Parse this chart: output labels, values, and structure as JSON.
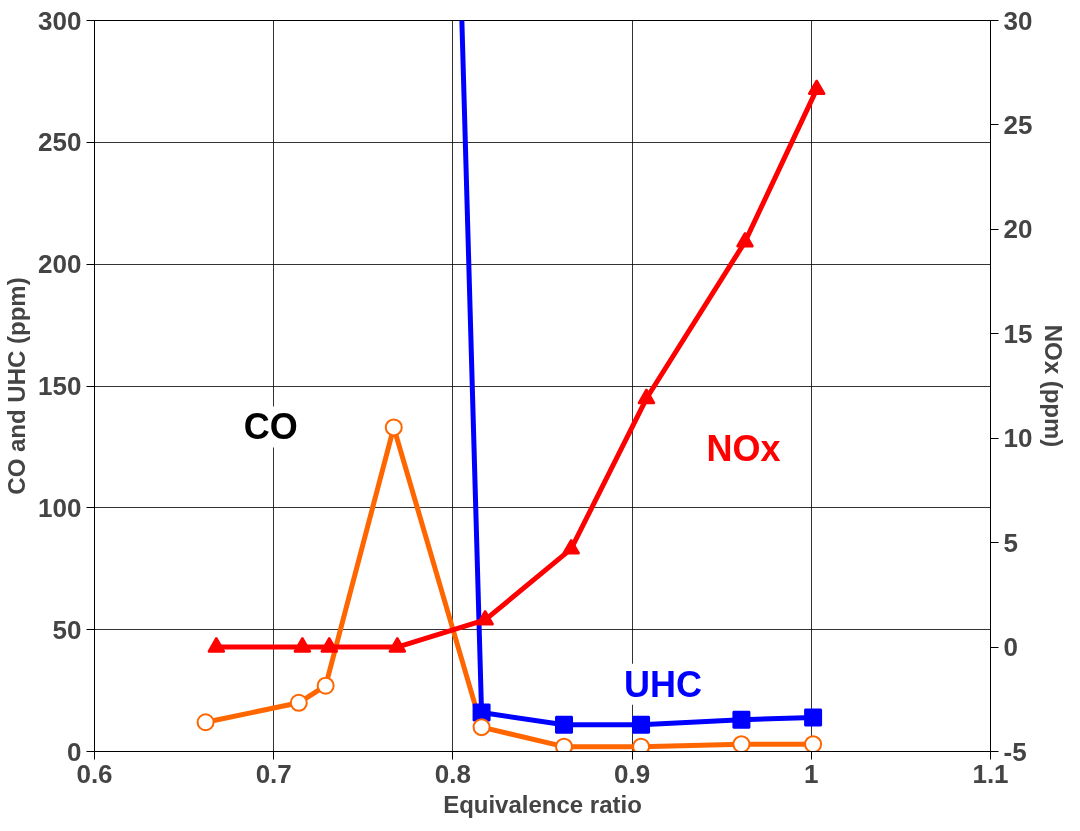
{
  "chart_data": {
    "type": "line",
    "xlabel": "Equivalence ratio",
    "ylabel": "CO and UHC (ppm)",
    "y2label": "NOx (ppm)",
    "xlim": [
      0.6,
      1.1
    ],
    "xticks": [
      0.6,
      0.7,
      0.8,
      0.9,
      1,
      1.1
    ],
    "ylim": [
      0,
      300
    ],
    "yticks": [
      0,
      50,
      100,
      150,
      200,
      250,
      300
    ],
    "y2lim": [
      -5,
      30
    ],
    "y2ticks": [
      -5,
      0,
      5,
      10,
      15,
      20,
      25,
      30
    ],
    "grid": true,
    "line_style": "solid",
    "series": [
      {
        "name": "CO",
        "color": "#ff6600",
        "marker": "circle",
        "x": [
          0.662,
          0.714,
          0.729,
          0.767,
          0.816,
          0.862,
          0.905,
          0.961,
          1.001
        ],
        "values": [
          12,
          20,
          27,
          133,
          10,
          2,
          2,
          3,
          3
        ]
      },
      {
        "color": "#0000ff",
        "x": [
          0.805,
          0.816
        ],
        "values": [
          300,
          16
        ]
      },
      {
        "name": "UHC",
        "color": "#0000ff",
        "marker": "square",
        "x": [
          0.816,
          0.862,
          0.905,
          0.961,
          1.001
        ],
        "values": [
          16,
          11,
          11,
          13,
          14
        ]
      },
      {
        "name": "NOx",
        "color": "#ff0000",
        "marker": "triangle",
        "axis": "y2",
        "x": [
          0.668,
          0.716,
          0.731,
          0.769,
          0.818,
          0.866,
          0.908,
          0.963,
          1.003
        ],
        "values": [
          0,
          0,
          0,
          0,
          1.3,
          4.7,
          11.9,
          19.4,
          26.7
        ]
      }
    ]
  }
}
